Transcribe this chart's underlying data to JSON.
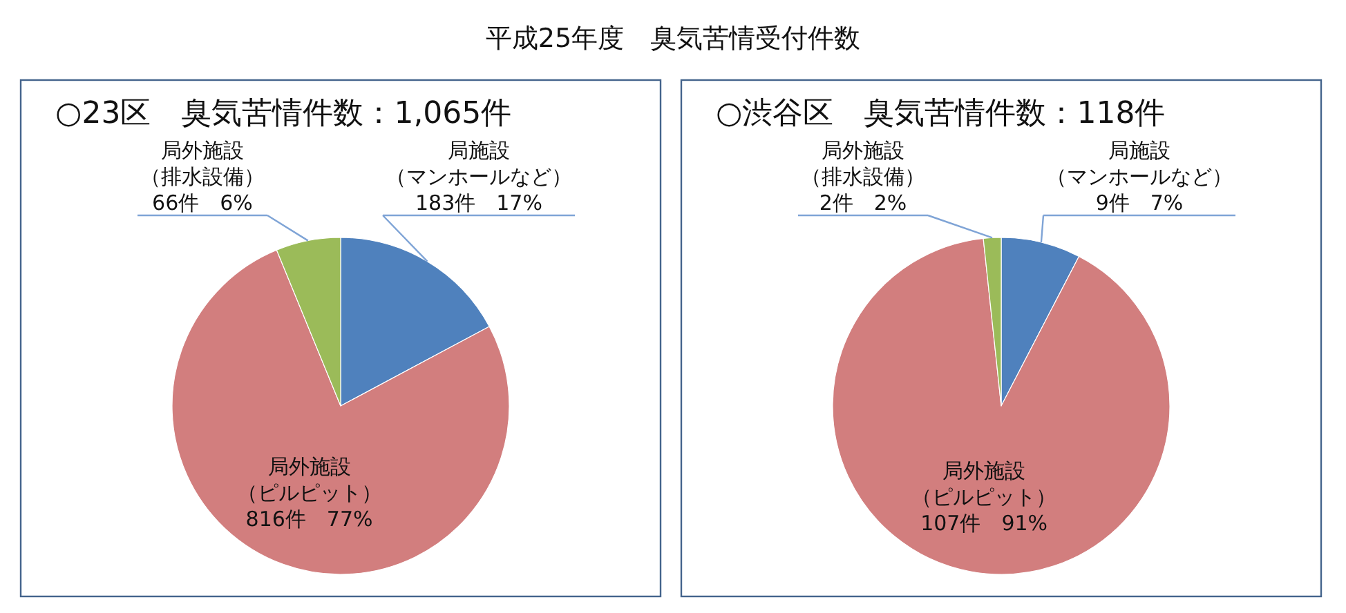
{
  "chart_data": [
    {
      "type": "other",
      "title": "平成25年度　臭気苦情受付件数"
    },
    {
      "type": "pie",
      "title": "○23区　臭気苦情件数：1,065件",
      "categories": [
        "局施設（マンホールなど）",
        "局外施設（ピルピット）",
        "局外施設（排水設備）"
      ],
      "values": [
        183,
        816,
        66
      ],
      "colors": [
        "#4f81bd",
        "#d27e7e",
        "#9bbb59"
      ],
      "value_labels": [
        "183件　17%",
        "816件　77%",
        "66件　6%"
      ]
    },
    {
      "type": "pie",
      "title": "○渋谷区　臭気苦情件数：118件",
      "categories": [
        "局施設（マンホールなど）",
        "局外施設（ピルピット）",
        "局外施設（排水設備）"
      ],
      "values": [
        9,
        107,
        2
      ],
      "colors": [
        "#4f81bd",
        "#d27e7e",
        "#9bbb59"
      ],
      "value_labels": [
        "9件　7%",
        "107件　91%",
        "2件　2%"
      ]
    }
  ]
}
